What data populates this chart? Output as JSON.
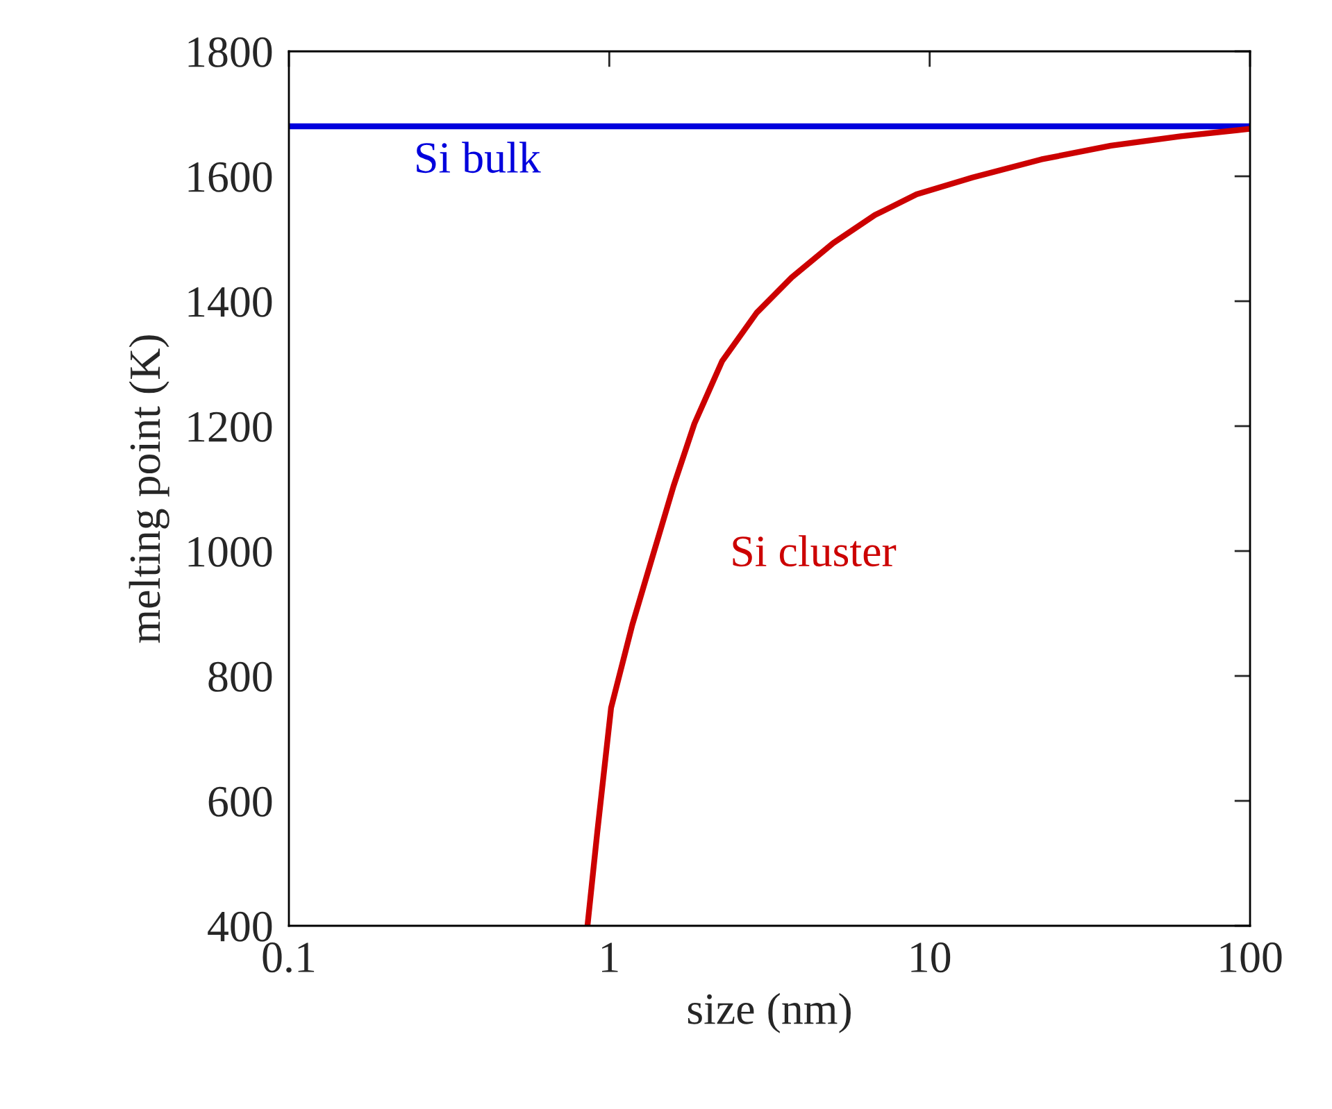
{
  "chart_data": {
    "type": "line",
    "xlabel": "size (nm)",
    "ylabel": "melting point (K)",
    "log": "x",
    "xlim": [
      0.1,
      100
    ],
    "xticks": [
      0.1,
      1,
      10,
      100
    ],
    "ylim": [
      400,
      1800
    ],
    "yticks": [
      400,
      600,
      800,
      1000,
      1200,
      1400,
      1600,
      1800
    ],
    "series": [
      {
        "name": "Si cluster",
        "color": "#cc0000",
        "x": [
          0.855,
          0.917,
          1.013,
          1.18,
          1.368,
          1.587,
          1.844,
          2.25,
          2.89,
          3.71,
          5.0,
          6.75,
          9.1,
          13.6,
          22.3,
          36.8,
          60.7,
          100
        ],
        "values": [
          400,
          549,
          749,
          882,
          993,
          1104,
          1204,
          1304,
          1382,
          1438,
          1493,
          1538,
          1571,
          1598,
          1627,
          1649,
          1664,
          1676
        ]
      }
    ],
    "ref_lines": [
      {
        "axis": "y",
        "value": 1680,
        "label": "Si bulk",
        "color": "#0000dd",
        "line_style": "solid"
      }
    ],
    "grid": false,
    "legend": false
  }
}
